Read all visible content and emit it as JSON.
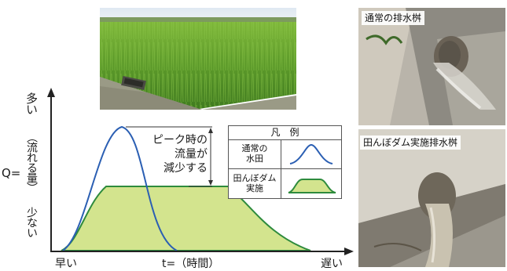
{
  "photos": {
    "top_right_label": "通常の排水桝",
    "bottom_right_label": "田んぼダム実施排水桝"
  },
  "diagram": {
    "y_label_top": "多い",
    "y_label_bottom": "少ない",
    "y_axis_symbol": "Q=",
    "y_axis_name": "（流れる量）",
    "x_label_left": "早い",
    "x_axis_name": "t=（時間）",
    "x_label_right": "遅い",
    "peak_annotation": [
      "ピーク時の",
      "流量が",
      "減少する"
    ],
    "legend": {
      "title": "凡　例",
      "items": [
        {
          "label": [
            "通常の",
            "水田"
          ],
          "color": "#2b5fb3"
        },
        {
          "label": [
            "田んぼダム",
            "実施"
          ],
          "color": "#2e8b3d",
          "fill": "#cfe08a"
        }
      ]
    }
  },
  "colors": {
    "normal_curve": "#2b5fb3",
    "dam_curve": "#2e8b3d",
    "dam_fill": "#d3e48e",
    "axis": "#222222"
  }
}
